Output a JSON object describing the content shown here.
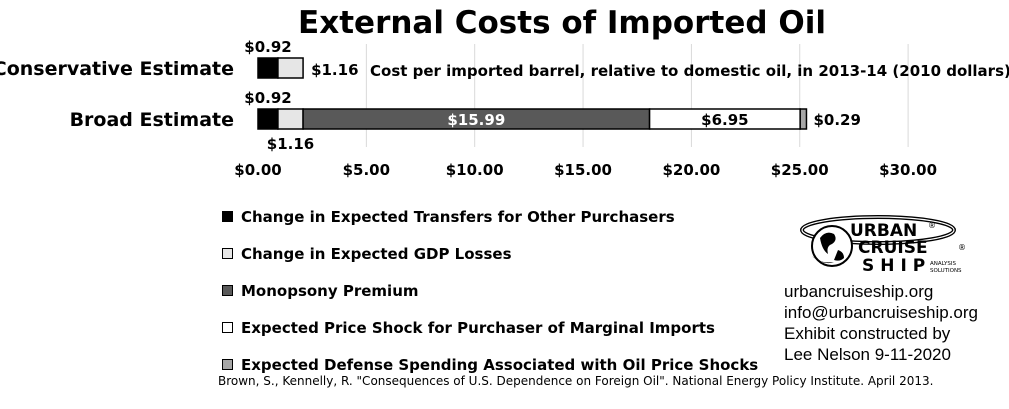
{
  "chart_data": {
    "type": "bar",
    "orientation": "horizontal",
    "stacked": true,
    "title": "External Costs of Imported Oil",
    "subtitle": "Cost per imported barrel, relative to domestic oil, in 2013-14 (2010 dollars)",
    "categories": [
      "Conservative Estimate",
      "Broad Estimate"
    ],
    "xlim": [
      0,
      30
    ],
    "x_ticks": [
      0,
      5,
      10,
      15,
      20,
      25,
      30
    ],
    "x_tick_labels": [
      "$0.00",
      "$5.00",
      "$10.00",
      "$15.00",
      "$20.00",
      "$25.00",
      "$30.00"
    ],
    "grid": "vertical",
    "legend_position": "bottom-left",
    "series": [
      {
        "name": "Change in Expected Transfers for Other Purchasers",
        "color": "#000000",
        "values": [
          0.92,
          0.92
        ],
        "labels": [
          "$0.92",
          "$0.92"
        ]
      },
      {
        "name": "Change in Expected GDP Losses",
        "color": "#e6e6e6",
        "values": [
          1.16,
          1.16
        ],
        "labels": [
          "$1.16",
          "$1.16"
        ]
      },
      {
        "name": "Monopsony Premium",
        "color": "#595959",
        "values": [
          0,
          15.99
        ],
        "labels": [
          "",
          "$15.99"
        ]
      },
      {
        "name": "Expected Price Shock for Purchaser of Marginal Imports",
        "color": "#ffffff",
        "values": [
          0,
          6.95
        ],
        "labels": [
          "",
          "$6.95"
        ]
      },
      {
        "name": "Expected Defense Spending Associated with Oil Price Shocks",
        "color": "#a6a6a6",
        "values": [
          0,
          0.29
        ],
        "labels": [
          "",
          "$0.29"
        ]
      }
    ]
  },
  "logo": {
    "line1": "URBAN",
    "line2": "CRUISE",
    "line3": "SHIP",
    "tag1": "ANALYSIS",
    "tag2": "SOLUTIONS",
    "reg": "®"
  },
  "credits": {
    "website": "urbancruiseship.org",
    "email": "info@urbancruiseship.org",
    "line3": "Exhibit constructed by",
    "line4": "Lee Nelson 9-11-2020"
  },
  "source": "Brown, S., Kennelly, R. \"Consequences of U.S. Dependence on Foreign Oil\". National Energy Policy Institute. April 2013."
}
